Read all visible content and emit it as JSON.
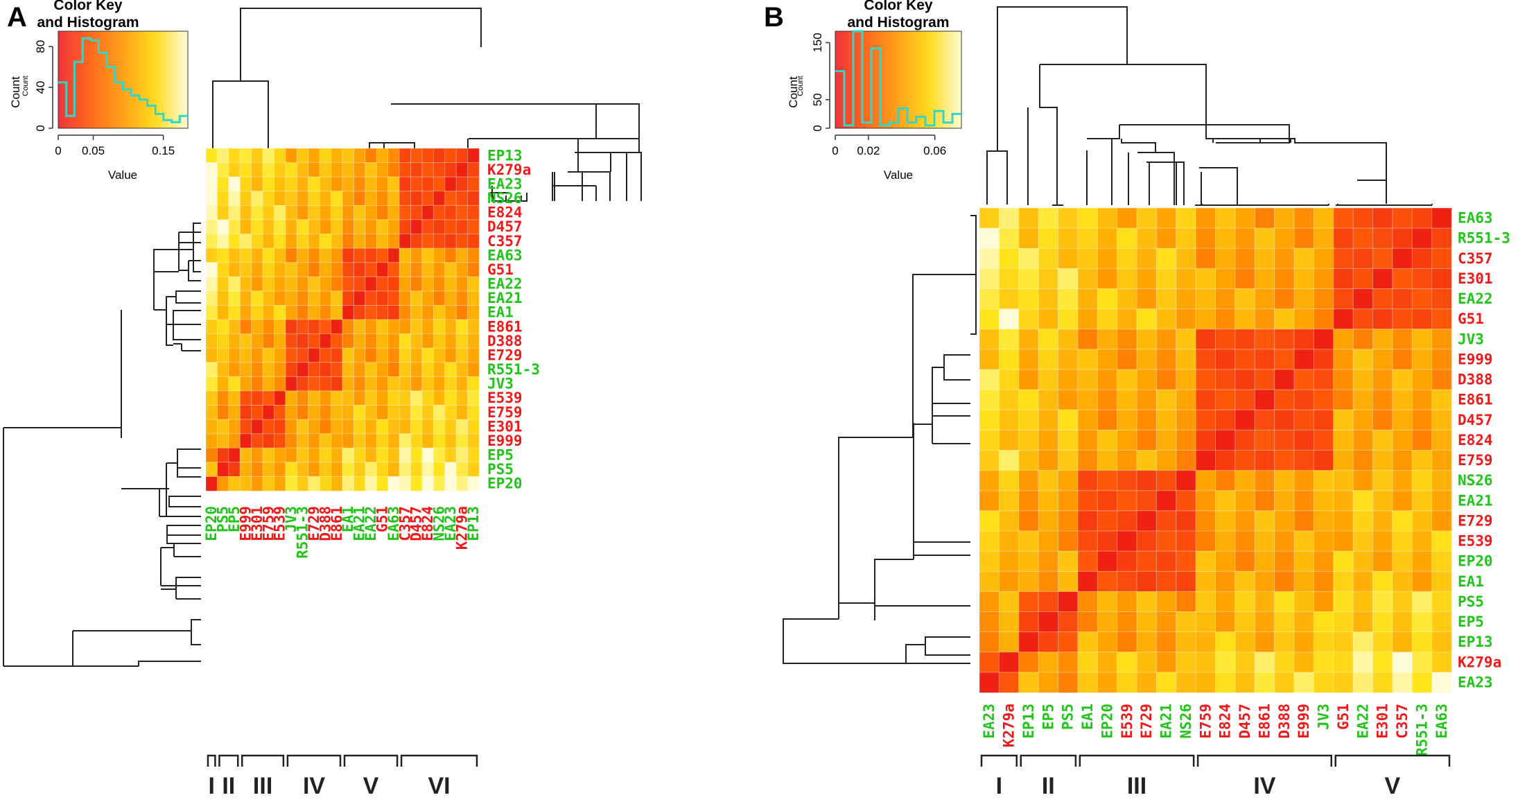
{
  "figure": {
    "colors": {
      "green": "#22c41a",
      "red": "#ee1a1a",
      "dendro": "#222222",
      "hist": "#37d3c4"
    }
  },
  "chart_data": [
    {
      "type": "heatmap",
      "panel": "A",
      "key_title_1": "Color Key",
      "key_title_2": "and Histogram",
      "key_xlabel": "Value",
      "key_ylabel": "Count",
      "key_xticks": [
        "0",
        "0.05",
        "0.15"
      ],
      "key_yticks": [
        "0",
        "40",
        "80"
      ],
      "key_xlim": [
        0,
        0.185
      ],
      "key_ylim": [
        0,
        95
      ],
      "hist_counts": [
        45,
        12,
        65,
        88,
        86,
        74,
        60,
        45,
        38,
        32,
        28,
        22,
        14,
        8,
        6,
        12
      ],
      "row_labels": [
        "EP13",
        "K279a",
        "EA23",
        "NS26",
        "E824",
        "D457",
        "C357",
        "EA63",
        "G51",
        "EA22",
        "EA21",
        "EA1",
        "E861",
        "D388",
        "E729",
        "R551-3",
        "JV3",
        "E539",
        "E759",
        "E301",
        "E999",
        "EP5",
        "PS5",
        "EP20"
      ],
      "row_colors": [
        "g",
        "r",
        "g",
        "g",
        "r",
        "r",
        "r",
        "g",
        "r",
        "g",
        "g",
        "g",
        "r",
        "r",
        "r",
        "g",
        "g",
        "r",
        "r",
        "r",
        "r",
        "g",
        "g",
        "g"
      ],
      "col_labels": [
        "EP20",
        "PS5",
        "EP5",
        "E999",
        "E301",
        "E759",
        "E539",
        "JV3",
        "R551-3",
        "E729",
        "D388",
        "E861",
        "EA1",
        "EA21",
        "EA22",
        "G51",
        "EA63",
        "C357",
        "D457",
        "E824",
        "NS26",
        "EA23",
        "K279a",
        "EP13"
      ],
      "col_colors": [
        "g",
        "g",
        "g",
        "r",
        "r",
        "r",
        "r",
        "g",
        "g",
        "r",
        "r",
        "r",
        "g",
        "g",
        "g",
        "r",
        "g",
        "r",
        "r",
        "r",
        "g",
        "g",
        "r",
        "g"
      ],
      "col_groups": [
        [
          0,
          0
        ],
        [
          1,
          2
        ],
        [
          3,
          6
        ],
        [
          7,
          11
        ],
        [
          12,
          16
        ],
        [
          17,
          23
        ]
      ],
      "clusters": [
        "I",
        "II",
        "III",
        "IV",
        "V",
        "VI"
      ]
    },
    {
      "type": "heatmap",
      "panel": "B",
      "key_title_1": "Color Key",
      "key_title_2": "and Histogram",
      "key_xlabel": "Value",
      "key_ylabel": "Count",
      "key_xticks": [
        "0",
        "0.02",
        "0.06"
      ],
      "key_yticks": [
        "0",
        "50",
        "150"
      ],
      "key_xlim": [
        0,
        0.076
      ],
      "key_ylim": [
        0,
        170
      ],
      "hist_counts": [
        100,
        5,
        170,
        10,
        140,
        5,
        10,
        35,
        10,
        20,
        5,
        30,
        10,
        25
      ],
      "row_labels": [
        "EA63",
        "R551-3",
        "C357",
        "E301",
        "EA22",
        "G51",
        "JV3",
        "E999",
        "D388",
        "E861",
        "D457",
        "E824",
        "E759",
        "NS26",
        "EA21",
        "E729",
        "E539",
        "EP20",
        "EA1",
        "PS5",
        "EP5",
        "EP13",
        "K279a",
        "EA23"
      ],
      "row_colors": [
        "g",
        "g",
        "r",
        "r",
        "g",
        "r",
        "g",
        "r",
        "r",
        "r",
        "r",
        "r",
        "r",
        "g",
        "g",
        "r",
        "r",
        "g",
        "g",
        "g",
        "g",
        "g",
        "r",
        "g"
      ],
      "col_labels": [
        "EA23",
        "K279a",
        "EP13",
        "EP5",
        "PS5",
        "EA1",
        "EP20",
        "E539",
        "E729",
        "EA21",
        "NS26",
        "E759",
        "E824",
        "D457",
        "E861",
        "D388",
        "E999",
        "JV3",
        "G51",
        "EA22",
        "E301",
        "C357",
        "R551-3",
        "EA63"
      ],
      "col_colors": [
        "g",
        "r",
        "g",
        "g",
        "g",
        "g",
        "g",
        "r",
        "r",
        "g",
        "g",
        "r",
        "r",
        "r",
        "r",
        "r",
        "r",
        "g",
        "r",
        "g",
        "r",
        "r",
        "g",
        "g"
      ],
      "col_groups": [
        [
          0,
          1
        ],
        [
          2,
          4
        ],
        [
          5,
          10
        ],
        [
          11,
          17
        ],
        [
          18,
          23
        ]
      ],
      "clusters": [
        "I",
        "II",
        "III",
        "IV",
        "V"
      ]
    }
  ]
}
